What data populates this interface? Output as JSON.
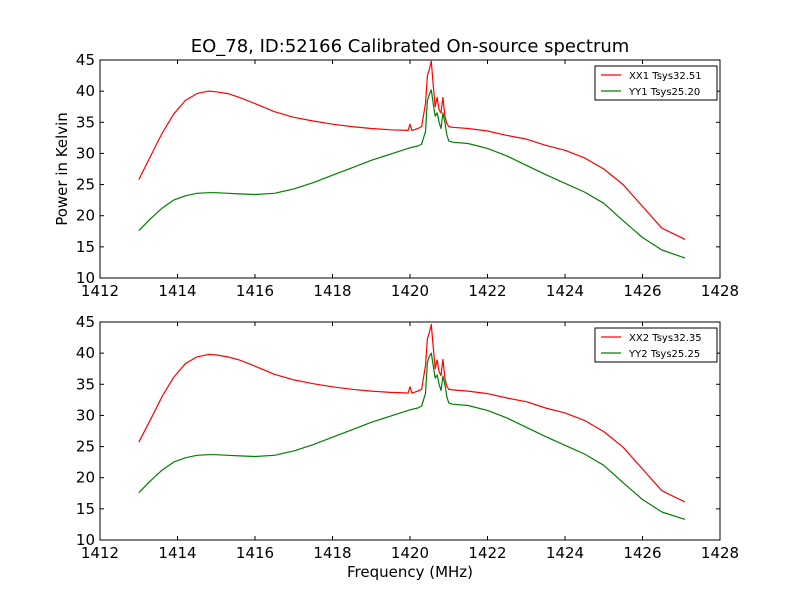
{
  "figure": {
    "title": "EO_78, ID:52166 Calibrated On-source spectrum",
    "xlabel": "Frequency (MHz)",
    "ylabel": "Power in Kelvin"
  },
  "chart_data": [
    {
      "type": "line",
      "xlim": [
        1412,
        1428
      ],
      "ylim": [
        10,
        45
      ],
      "xticks": [
        1412,
        1414,
        1416,
        1418,
        1420,
        1422,
        1424,
        1426,
        1428
      ],
      "yticks": [
        10,
        15,
        20,
        25,
        30,
        35,
        40,
        45
      ],
      "ylabel": "Power in Kelvin",
      "xlabel": "",
      "grid": false,
      "legend_position": "top-right",
      "series": [
        {
          "name": "XX1 Tsys32.51",
          "color": "#ff0000",
          "x": [
            1413.0,
            1413.3,
            1413.6,
            1413.9,
            1414.2,
            1414.5,
            1414.8,
            1415.0,
            1415.3,
            1415.6,
            1416.0,
            1416.5,
            1417.0,
            1417.5,
            1418.0,
            1418.5,
            1419.0,
            1419.5,
            1419.95,
            1420.0,
            1420.05,
            1420.1,
            1420.2,
            1420.3,
            1420.4,
            1420.45,
            1420.5,
            1420.55,
            1420.6,
            1420.65,
            1420.7,
            1420.75,
            1420.8,
            1420.85,
            1420.9,
            1420.95,
            1421.0,
            1421.1,
            1421.5,
            1422.0,
            1422.5,
            1423.0,
            1423.5,
            1424.0,
            1424.5,
            1425.0,
            1425.5,
            1426.0,
            1426.5,
            1427.1
          ],
          "y": [
            25.8,
            29.5,
            33.2,
            36.3,
            38.5,
            39.6,
            40.0,
            39.9,
            39.6,
            39.0,
            38.0,
            36.7,
            35.8,
            35.2,
            34.7,
            34.3,
            34.0,
            33.8,
            33.7,
            34.7,
            33.7,
            33.8,
            34.0,
            34.3,
            38.0,
            42.5,
            43.5,
            44.8,
            41.0,
            37.5,
            39.0,
            37.0,
            36.5,
            39.0,
            36.0,
            34.8,
            34.3,
            34.2,
            34.0,
            33.6,
            32.9,
            32.3,
            31.3,
            30.5,
            29.3,
            27.5,
            25.0,
            21.5,
            18.0,
            16.2
          ]
        },
        {
          "name": "YY1 Tsys25.20",
          "color": "#008000",
          "x": [
            1413.0,
            1413.3,
            1413.6,
            1413.9,
            1414.2,
            1414.5,
            1414.8,
            1415.0,
            1415.3,
            1415.6,
            1416.0,
            1416.5,
            1417.0,
            1417.5,
            1418.0,
            1418.5,
            1419.0,
            1419.5,
            1420.0,
            1420.2,
            1420.3,
            1420.4,
            1420.45,
            1420.5,
            1420.55,
            1420.6,
            1420.65,
            1420.7,
            1420.75,
            1420.8,
            1420.85,
            1420.9,
            1420.95,
            1421.0,
            1421.1,
            1421.5,
            1422.0,
            1422.5,
            1423.0,
            1423.5,
            1424.0,
            1424.5,
            1425.0,
            1425.5,
            1426.0,
            1426.5,
            1427.1
          ],
          "y": [
            17.6,
            19.5,
            21.2,
            22.5,
            23.2,
            23.6,
            23.7,
            23.7,
            23.6,
            23.5,
            23.4,
            23.6,
            24.3,
            25.3,
            26.5,
            27.7,
            28.9,
            29.9,
            30.9,
            31.2,
            31.5,
            33.5,
            38.5,
            39.5,
            40.2,
            38.0,
            36.0,
            36.5,
            35.0,
            34.0,
            36.5,
            35.0,
            33.0,
            32.0,
            31.8,
            31.6,
            30.8,
            29.6,
            28.1,
            26.6,
            25.2,
            23.8,
            22.0,
            19.2,
            16.5,
            14.5,
            13.2
          ]
        }
      ]
    },
    {
      "type": "line",
      "xlim": [
        1412,
        1428
      ],
      "ylim": [
        10,
        45
      ],
      "xticks": [
        1412,
        1414,
        1416,
        1418,
        1420,
        1422,
        1424,
        1426,
        1428
      ],
      "yticks": [
        10,
        15,
        20,
        25,
        30,
        35,
        40,
        45
      ],
      "ylabel": "",
      "xlabel": "Frequency (MHz)",
      "grid": false,
      "legend_position": "top-right",
      "series": [
        {
          "name": "XX2 Tsys32.35",
          "color": "#ff0000",
          "x": [
            1413.0,
            1413.3,
            1413.6,
            1413.9,
            1414.2,
            1414.5,
            1414.8,
            1415.0,
            1415.3,
            1415.6,
            1416.0,
            1416.5,
            1417.0,
            1417.5,
            1418.0,
            1418.5,
            1419.0,
            1419.5,
            1419.95,
            1420.0,
            1420.05,
            1420.1,
            1420.2,
            1420.3,
            1420.4,
            1420.45,
            1420.5,
            1420.55,
            1420.6,
            1420.65,
            1420.7,
            1420.75,
            1420.8,
            1420.85,
            1420.9,
            1420.95,
            1421.0,
            1421.1,
            1421.5,
            1422.0,
            1422.5,
            1423.0,
            1423.5,
            1424.0,
            1424.5,
            1425.0,
            1425.5,
            1426.0,
            1426.5,
            1427.1
          ],
          "y": [
            25.7,
            29.3,
            33.0,
            36.1,
            38.3,
            39.4,
            39.8,
            39.7,
            39.4,
            38.9,
            37.9,
            36.6,
            35.7,
            35.1,
            34.6,
            34.2,
            33.9,
            33.7,
            33.6,
            34.6,
            33.6,
            33.7,
            33.9,
            34.2,
            38.0,
            42.3,
            43.3,
            44.6,
            41.0,
            37.5,
            38.9,
            37.0,
            36.4,
            39.0,
            36.0,
            34.7,
            34.2,
            34.1,
            33.9,
            33.5,
            32.8,
            32.2,
            31.2,
            30.4,
            29.2,
            27.4,
            24.9,
            21.4,
            17.9,
            16.1
          ]
        },
        {
          "name": "YY2 Tsys25.25",
          "color": "#008000",
          "x": [
            1413.0,
            1413.3,
            1413.6,
            1413.9,
            1414.2,
            1414.5,
            1414.8,
            1415.0,
            1415.3,
            1415.6,
            1416.0,
            1416.5,
            1417.0,
            1417.5,
            1418.0,
            1418.5,
            1419.0,
            1419.5,
            1420.0,
            1420.2,
            1420.3,
            1420.4,
            1420.45,
            1420.5,
            1420.55,
            1420.6,
            1420.65,
            1420.7,
            1420.75,
            1420.8,
            1420.85,
            1420.9,
            1420.95,
            1421.0,
            1421.1,
            1421.5,
            1422.0,
            1422.5,
            1423.0,
            1423.5,
            1424.0,
            1424.5,
            1425.0,
            1425.5,
            1426.0,
            1426.5,
            1427.1
          ],
          "y": [
            17.6,
            19.5,
            21.2,
            22.5,
            23.2,
            23.6,
            23.7,
            23.7,
            23.6,
            23.5,
            23.4,
            23.6,
            24.3,
            25.3,
            26.5,
            27.7,
            28.9,
            29.9,
            30.9,
            31.2,
            31.5,
            33.5,
            38.5,
            39.5,
            40.0,
            38.0,
            36.0,
            36.5,
            35.0,
            34.0,
            36.3,
            35.0,
            33.0,
            32.0,
            31.8,
            31.6,
            30.8,
            29.6,
            28.1,
            26.6,
            25.2,
            23.8,
            22.0,
            19.2,
            16.5,
            14.5,
            13.3
          ]
        }
      ]
    }
  ]
}
